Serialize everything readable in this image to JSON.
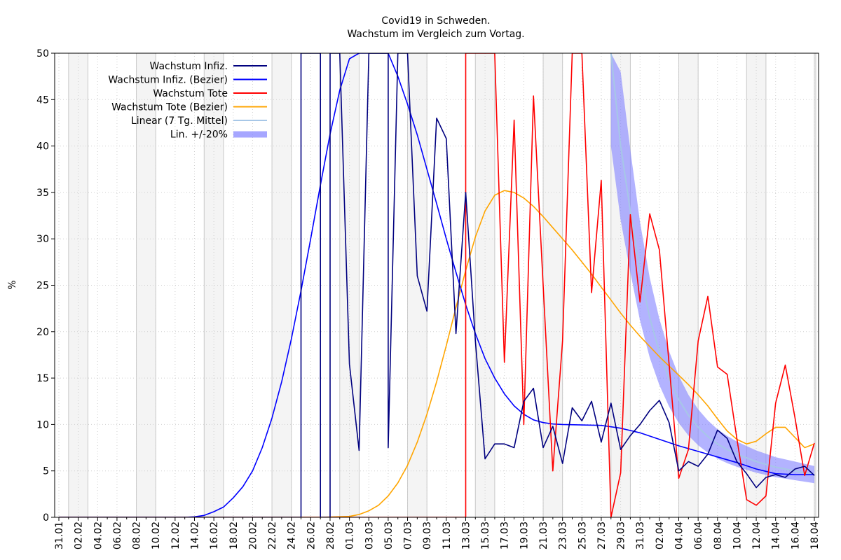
{
  "chart_data": {
    "type": "line",
    "title": "Covid19 in Schweden.",
    "subtitle": "Wachstum im Vergleich zum Vortag.",
    "ylabel": "%",
    "xlabel": "",
    "ylim": [
      0,
      50
    ],
    "yticks": [
      0,
      5,
      10,
      15,
      20,
      25,
      30,
      35,
      40,
      45,
      50
    ],
    "grid": true,
    "legend_position": "top-left",
    "x_start": "2020-01-31",
    "x_end": "2020-04-18",
    "xtick_labels": [
      "31.01",
      "02.02",
      "04.02",
      "06.02",
      "08.02",
      "10.02",
      "12.02",
      "14.02",
      "16.02",
      "18.02",
      "20.02",
      "22.02",
      "24.02",
      "26.02",
      "28.02",
      "01.03",
      "03.03",
      "05.03",
      "07.03",
      "09.03",
      "11.03",
      "13.03",
      "15.03",
      "17.03",
      "19.03",
      "21.03",
      "23.03",
      "25.03",
      "27.03",
      "29.03",
      "31.03",
      "02.04",
      "04.04",
      "06.04",
      "08.04",
      "10.04",
      "12.04",
      "14.04",
      "16.04",
      "18.04"
    ],
    "weekend_bands": [
      [
        "2020-02-01",
        "2020-02-03"
      ],
      [
        "2020-02-08",
        "2020-02-10"
      ],
      [
        "2020-02-15",
        "2020-02-17"
      ],
      [
        "2020-02-22",
        "2020-02-24"
      ],
      [
        "2020-02-29",
        "2020-03-02"
      ],
      [
        "2020-03-07",
        "2020-03-09"
      ],
      [
        "2020-03-14",
        "2020-03-16"
      ],
      [
        "2020-03-21",
        "2020-03-23"
      ],
      [
        "2020-03-28",
        "2020-03-30"
      ],
      [
        "2020-04-04",
        "2020-04-06"
      ],
      [
        "2020-04-11",
        "2020-04-13"
      ],
      [
        "2020-04-18",
        "2020-04-18"
      ]
    ],
    "series": [
      {
        "name": "Wachstum Infiz.",
        "color": "#00007f",
        "style": "line",
        "points": [
          [
            "2020-01-31",
            0
          ],
          [
            "2020-02-24",
            0
          ],
          [
            "2020-02-25",
            0
          ],
          [
            "2020-02-25",
            50
          ],
          [
            "2020-02-27",
            50
          ],
          [
            "2020-02-27",
            0
          ],
          [
            "2020-02-28",
            0
          ],
          [
            "2020-02-28",
            50
          ],
          [
            "2020-02-29",
            50
          ],
          [
            "2020-03-01",
            16.5
          ],
          [
            "2020-03-02",
            7.2
          ],
          [
            "2020-03-03",
            50
          ],
          [
            "2020-03-05",
            50
          ],
          [
            "2020-03-05",
            7.5
          ],
          [
            "2020-03-06",
            50
          ],
          [
            "2020-03-07",
            50
          ],
          [
            "2020-03-08",
            26
          ],
          [
            "2020-03-09",
            22.2
          ],
          [
            "2020-03-10",
            43
          ],
          [
            "2020-03-11",
            40.8
          ],
          [
            "2020-03-12",
            19.8
          ],
          [
            "2020-03-13",
            35
          ],
          [
            "2020-03-14",
            19
          ],
          [
            "2020-03-15",
            6.3
          ],
          [
            "2020-03-16",
            7.9
          ],
          [
            "2020-03-17",
            7.9
          ],
          [
            "2020-03-18",
            7.5
          ],
          [
            "2020-03-19",
            12.5
          ],
          [
            "2020-03-20",
            13.9
          ],
          [
            "2020-03-21",
            7.5
          ],
          [
            "2020-03-22",
            9.8
          ],
          [
            "2020-03-23",
            5.8
          ],
          [
            "2020-03-24",
            11.8
          ],
          [
            "2020-03-25",
            10.4
          ],
          [
            "2020-03-26",
            12.5
          ],
          [
            "2020-03-27",
            8.1
          ],
          [
            "2020-03-28",
            12.3
          ],
          [
            "2020-03-29",
            7.3
          ],
          [
            "2020-03-30",
            8.8
          ],
          [
            "2020-03-31",
            10
          ],
          [
            "2020-04-01",
            11.5
          ],
          [
            "2020-04-02",
            12.6
          ],
          [
            "2020-04-03",
            10.2
          ],
          [
            "2020-04-04",
            5
          ],
          [
            "2020-04-05",
            6
          ],
          [
            "2020-04-06",
            5.5
          ],
          [
            "2020-04-07",
            6.8
          ],
          [
            "2020-04-08",
            9.4
          ],
          [
            "2020-04-09",
            8.5
          ],
          [
            "2020-04-10",
            6
          ],
          [
            "2020-04-11",
            4.7
          ],
          [
            "2020-04-12",
            3.2
          ],
          [
            "2020-04-13",
            4.3
          ],
          [
            "2020-04-14",
            4.6
          ],
          [
            "2020-04-15",
            4.3
          ],
          [
            "2020-04-16",
            5.2
          ],
          [
            "2020-04-17",
            5.5
          ],
          [
            "2020-04-18",
            4.5
          ]
        ]
      },
      {
        "name": "Wachstum Infiz. (Bezier)",
        "color": "#0000ff",
        "style": "line",
        "points": [
          [
            "2020-01-31",
            0
          ],
          [
            "2020-02-13",
            0
          ],
          [
            "2020-02-14",
            0.05
          ],
          [
            "2020-02-15",
            0.2
          ],
          [
            "2020-02-16",
            0.6
          ],
          [
            "2020-02-17",
            1.1
          ],
          [
            "2020-02-18",
            2.1
          ],
          [
            "2020-02-19",
            3.3
          ],
          [
            "2020-02-20",
            5
          ],
          [
            "2020-02-21",
            7.5
          ],
          [
            "2020-02-22",
            10.7
          ],
          [
            "2020-02-23",
            14.6
          ],
          [
            "2020-02-24",
            19.2
          ],
          [
            "2020-02-25",
            24.4
          ],
          [
            "2020-02-26",
            30
          ],
          [
            "2020-02-27",
            35.8
          ],
          [
            "2020-02-28",
            41.3
          ],
          [
            "2020-02-29",
            46
          ],
          [
            "2020-03-01",
            49.4
          ],
          [
            "2020-03-02",
            50
          ],
          [
            "2020-03-05",
            50
          ],
          [
            "2020-03-06",
            47.5
          ],
          [
            "2020-03-07",
            44.5
          ],
          [
            "2020-03-08",
            41.2
          ],
          [
            "2020-03-09",
            37.5
          ],
          [
            "2020-03-10",
            33.8
          ],
          [
            "2020-03-11",
            30
          ],
          [
            "2020-03-12",
            26.4
          ],
          [
            "2020-03-13",
            22.9
          ],
          [
            "2020-03-14",
            19.8
          ],
          [
            "2020-03-15",
            17.1
          ],
          [
            "2020-03-16",
            15
          ],
          [
            "2020-03-17",
            13.3
          ],
          [
            "2020-03-18",
            12
          ],
          [
            "2020-03-19",
            11.1
          ],
          [
            "2020-03-20",
            10.5
          ],
          [
            "2020-03-21",
            10.2
          ],
          [
            "2020-03-22",
            10.05
          ],
          [
            "2020-03-23",
            10
          ],
          [
            "2020-03-25",
            9.95
          ],
          [
            "2020-03-27",
            9.9
          ],
          [
            "2020-03-29",
            9.6
          ],
          [
            "2020-03-31",
            9.1
          ],
          [
            "2020-04-02",
            8.4
          ],
          [
            "2020-04-04",
            7.7
          ],
          [
            "2020-04-06",
            7.1
          ],
          [
            "2020-04-08",
            6.5
          ],
          [
            "2020-04-10",
            5.9
          ],
          [
            "2020-04-12",
            5.2
          ],
          [
            "2020-04-14",
            4.7
          ],
          [
            "2020-04-16",
            4.6
          ],
          [
            "2020-04-18",
            4.6
          ]
        ]
      },
      {
        "name": "Wachstum Tote",
        "color": "#ff0000",
        "style": "line",
        "points": [
          [
            "2020-01-31",
            0
          ],
          [
            "2020-03-12",
            0
          ],
          [
            "2020-03-13",
            0
          ],
          [
            "2020-03-13",
            50
          ],
          [
            "2020-03-16",
            50
          ],
          [
            "2020-03-17",
            16.7
          ],
          [
            "2020-03-18",
            42.8
          ],
          [
            "2020-03-19",
            10
          ],
          [
            "2020-03-20",
            45.4
          ],
          [
            "2020-03-21",
            25
          ],
          [
            "2020-03-22",
            5
          ],
          [
            "2020-03-23",
            19
          ],
          [
            "2020-03-24",
            50
          ],
          [
            "2020-03-25",
            50
          ],
          [
            "2020-03-26",
            24.2
          ],
          [
            "2020-03-27",
            36.3
          ],
          [
            "2020-03-28",
            0
          ],
          [
            "2020-03-29",
            4.8
          ],
          [
            "2020-03-30",
            32.6
          ],
          [
            "2020-03-31",
            23.2
          ],
          [
            "2020-04-01",
            32.7
          ],
          [
            "2020-04-02",
            28.8
          ],
          [
            "2020-04-03",
            16.5
          ],
          [
            "2020-04-04",
            4.2
          ],
          [
            "2020-04-05",
            7.3
          ],
          [
            "2020-04-06",
            19
          ],
          [
            "2020-04-07",
            23.8
          ],
          [
            "2020-04-08",
            16.2
          ],
          [
            "2020-04-09",
            15.4
          ],
          [
            "2020-04-10",
            8.5
          ],
          [
            "2020-04-11",
            1.9
          ],
          [
            "2020-04-12",
            1.3
          ],
          [
            "2020-04-13",
            2.3
          ],
          [
            "2020-04-14",
            12.3
          ],
          [
            "2020-04-15",
            16.4
          ],
          [
            "2020-04-16",
            10.7
          ],
          [
            "2020-04-17",
            4.5
          ],
          [
            "2020-04-18",
            8
          ]
        ]
      },
      {
        "name": "Wachstum Tote (Bezier)",
        "color": "#ffa500",
        "style": "line",
        "points": [
          [
            "2020-01-31",
            0
          ],
          [
            "2020-02-27",
            0
          ],
          [
            "2020-03-01",
            0.1
          ],
          [
            "2020-03-02",
            0.3
          ],
          [
            "2020-03-03",
            0.7
          ],
          [
            "2020-03-04",
            1.3
          ],
          [
            "2020-03-05",
            2.3
          ],
          [
            "2020-03-06",
            3.7
          ],
          [
            "2020-03-07",
            5.6
          ],
          [
            "2020-03-08",
            8.1
          ],
          [
            "2020-03-09",
            11.1
          ],
          [
            "2020-03-10",
            14.6
          ],
          [
            "2020-03-11",
            18.5
          ],
          [
            "2020-03-12",
            22.6
          ],
          [
            "2020-03-13",
            26.6
          ],
          [
            "2020-03-14",
            30.2
          ],
          [
            "2020-03-15",
            33
          ],
          [
            "2020-03-16",
            34.7
          ],
          [
            "2020-03-17",
            35.2
          ],
          [
            "2020-03-18",
            35
          ],
          [
            "2020-03-19",
            34.4
          ],
          [
            "2020-03-20",
            33.5
          ],
          [
            "2020-03-21",
            32.4
          ],
          [
            "2020-03-22",
            31.2
          ],
          [
            "2020-03-23",
            30
          ],
          [
            "2020-03-24",
            28.8
          ],
          [
            "2020-03-25",
            27.5
          ],
          [
            "2020-03-26",
            26.2
          ],
          [
            "2020-03-27",
            24.8
          ],
          [
            "2020-03-28",
            23.4
          ],
          [
            "2020-03-29",
            22
          ],
          [
            "2020-03-30",
            20.7
          ],
          [
            "2020-03-31",
            19.5
          ],
          [
            "2020-04-01",
            18.4
          ],
          [
            "2020-04-02",
            17.3
          ],
          [
            "2020-04-03",
            16.3
          ],
          [
            "2020-04-04",
            15.3
          ],
          [
            "2020-04-05",
            14.3
          ],
          [
            "2020-04-06",
            13.2
          ],
          [
            "2020-04-07",
            12
          ],
          [
            "2020-04-08",
            10.6
          ],
          [
            "2020-04-09",
            9.3
          ],
          [
            "2020-04-10",
            8.4
          ],
          [
            "2020-04-11",
            7.9
          ],
          [
            "2020-04-12",
            8.2
          ],
          [
            "2020-04-13",
            9
          ],
          [
            "2020-04-14",
            9.7
          ],
          [
            "2020-04-15",
            9.7
          ],
          [
            "2020-04-16",
            8.6
          ],
          [
            "2020-04-17",
            7.5
          ],
          [
            "2020-04-18",
            7.9
          ]
        ]
      },
      {
        "name": "Linear (7 Tg. Mittel)",
        "color": "#a7c7e7",
        "style": "line",
        "points": [
          [
            "2020-03-28",
            50
          ],
          [
            "2020-03-29",
            40
          ],
          [
            "2020-03-30",
            33
          ],
          [
            "2020-03-31",
            26.5
          ],
          [
            "2020-04-01",
            21.5
          ],
          [
            "2020-04-02",
            17.8
          ],
          [
            "2020-04-03",
            14.9
          ],
          [
            "2020-04-04",
            12.7
          ],
          [
            "2020-04-05",
            11
          ],
          [
            "2020-04-06",
            9.7
          ],
          [
            "2020-04-07",
            8.7
          ],
          [
            "2020-04-08",
            7.9
          ],
          [
            "2020-04-09",
            7.3
          ],
          [
            "2020-04-10",
            6.8
          ],
          [
            "2020-04-11",
            6.4
          ],
          [
            "2020-04-12",
            6
          ],
          [
            "2020-04-13",
            5.7
          ],
          [
            "2020-04-14",
            5.4
          ],
          [
            "2020-04-15",
            5.2
          ],
          [
            "2020-04-16",
            5
          ],
          [
            "2020-04-17",
            4.8
          ],
          [
            "2020-04-18",
            4.6
          ]
        ]
      },
      {
        "name": "Lin. +/-20%",
        "color": "#8080ff",
        "style": "band",
        "factor": 0.2
      }
    ]
  }
}
